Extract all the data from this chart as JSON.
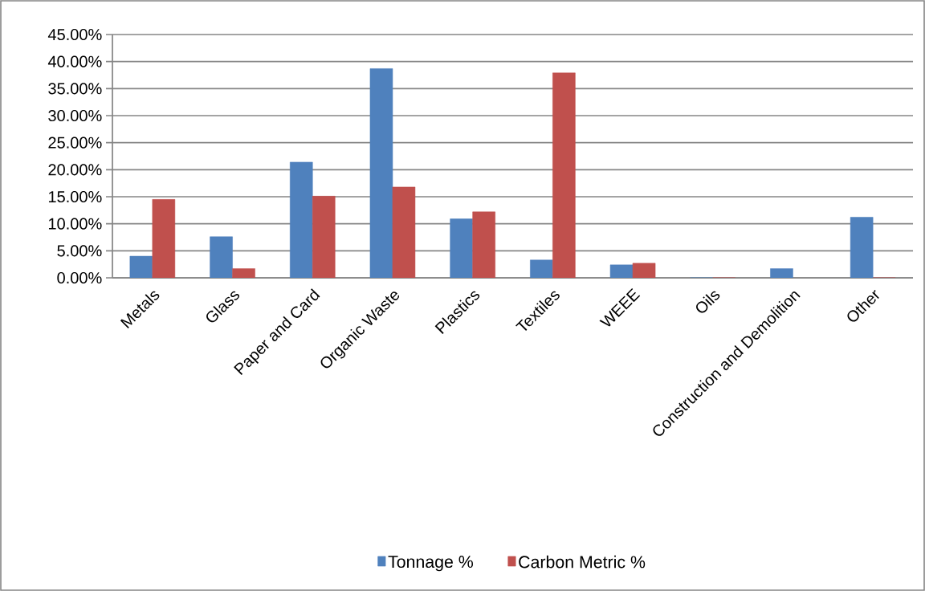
{
  "chart_data": {
    "type": "bar",
    "categories": [
      "Metals",
      "Glass",
      "Paper and Card",
      "Organic Waste",
      "Plastics",
      "Textiles",
      "WEEE",
      "Oils",
      "Construction and Demolition",
      "Other"
    ],
    "series": [
      {
        "name": "Tonnage %",
        "color": "#4f81bd",
        "values": [
          4.0,
          7.6,
          21.4,
          38.7,
          10.9,
          3.3,
          2.4,
          0,
          1.7,
          11.2
        ]
      },
      {
        "name": "Carbon Metric %",
        "color": "#c0504d",
        "values": [
          14.5,
          1.7,
          15.1,
          16.8,
          12.2,
          37.9,
          2.7,
          0,
          null,
          0
        ]
      }
    ],
    "ylim": [
      0,
      45
    ],
    "yticks": [
      {
        "value": 0,
        "label": "0.00%"
      },
      {
        "value": 5,
        "label": "5.00%"
      },
      {
        "value": 10,
        "label": "10.00%"
      },
      {
        "value": 15,
        "label": "15.00%"
      },
      {
        "value": 20,
        "label": "20.00%"
      },
      {
        "value": 25,
        "label": "25.00%"
      },
      {
        "value": 30,
        "label": "30.00%"
      },
      {
        "value": 35,
        "label": "35.00%"
      },
      {
        "value": 40,
        "label": "40.00%"
      },
      {
        "value": 45,
        "label": "45.00%"
      }
    ],
    "grid": "y",
    "legend": "bottom"
  }
}
